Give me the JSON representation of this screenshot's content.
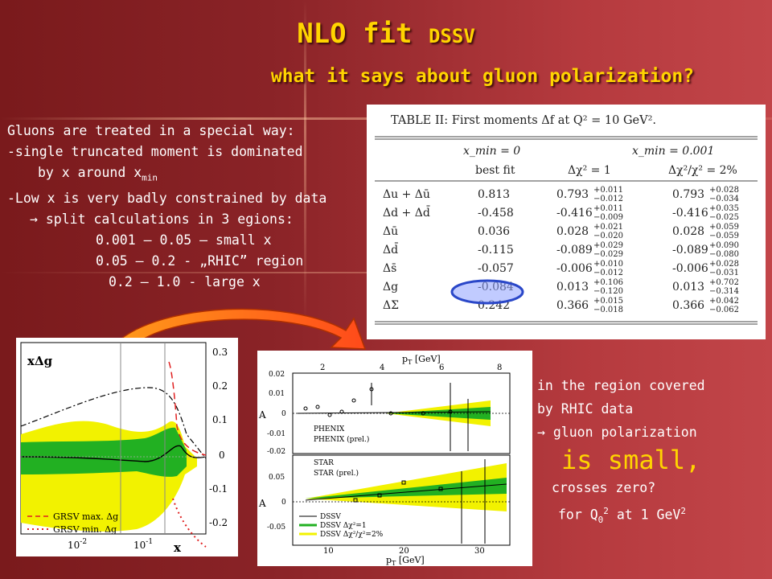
{
  "title": {
    "main": "NLO fit",
    "small": "DSSV",
    "subtitle": "what it says about gluon polarization?"
  },
  "left_text": [
    "Gluons are treated in a special way:",
    "-single truncated moment is dominated",
    "by x around x",
    "min",
    "-Low x is very badly constrained by data",
    "→ split calculations in 3 egions:",
    "0.001 – 0.05 – small x",
    "0.05 – 0.2  - „RHIC” region",
    "0.2 – 1.0   - large x"
  ],
  "table": {
    "caption": "TABLE II: First moments Δf at Q² = 10 GeV².",
    "group_headers": [
      "x_min = 0",
      "x_min = 0.001"
    ],
    "col_headers": [
      "best fit",
      "Δχ² = 1",
      "Δχ²/χ² = 2%"
    ],
    "rows": [
      {
        "label": "Δu + Δū",
        "best": "0.813",
        "c1": "0.793",
        "c1e": [
          "+0.011",
          "−0.012"
        ],
        "c2": "0.793",
        "c2e": [
          "+0.028",
          "−0.034"
        ]
      },
      {
        "label": "Δd + Δd̄",
        "best": "-0.458",
        "c1": "-0.416",
        "c1e": [
          "+0.011",
          "−0.009"
        ],
        "c2": "-0.416",
        "c2e": [
          "+0.035",
          "−0.025"
        ]
      },
      {
        "label": "Δū",
        "best": "0.036",
        "c1": "0.028",
        "c1e": [
          "+0.021",
          "−0.020"
        ],
        "c2": "0.028",
        "c2e": [
          "+0.059",
          "−0.059"
        ]
      },
      {
        "label": "Δd̄",
        "best": "-0.115",
        "c1": "-0.089",
        "c1e": [
          "+0.029",
          "−0.029"
        ],
        "c2": "-0.089",
        "c2e": [
          "+0.090",
          "−0.080"
        ]
      },
      {
        "label": "Δs̄",
        "best": "-0.057",
        "c1": "-0.006",
        "c1e": [
          "+0.010",
          "−0.012"
        ],
        "c2": "-0.006",
        "c2e": [
          "+0.028",
          "−0.031"
        ]
      },
      {
        "label": "Δg",
        "best": "-0.084",
        "c1": "0.013",
        "c1e": [
          "+0.106",
          "−0.120"
        ],
        "c2": "0.013",
        "c2e": [
          "+0.702",
          "−0.314"
        ]
      },
      {
        "label": "ΔΣ",
        "best": "0.242",
        "c1": "0.366",
        "c1e": [
          "+0.015",
          "−0.018"
        ],
        "c2": "0.366",
        "c2e": [
          "+0.042",
          "−0.062"
        ]
      }
    ]
  },
  "plot1": {
    "ylabel": "xΔg",
    "xlabel": "x",
    "yticks": [
      "0.3",
      "0.2",
      "0.1",
      "0",
      "-0.1",
      "-0.2"
    ],
    "xticks": [
      "10",
      "10"
    ],
    "xtick_exps": [
      "-2",
      "-1"
    ],
    "legend": [
      "GRSV max. Δg",
      "GRSV min. Δg"
    ]
  },
  "plot2": {
    "top_axis_label": "p",
    "top_axis_sub": "T",
    "top_axis_unit": " [GeV]",
    "top_ticks": [
      "2",
      "4",
      "6",
      "8"
    ],
    "bottom_axis_label": "p",
    "bottom_axis_sub": "T",
    "bottom_axis_unit": " [GeV]",
    "bottom_ticks": [
      "10",
      "20",
      "30"
    ],
    "upper_yticks": [
      "0.02",
      "0.01",
      "0",
      "-0.01",
      "-0.02"
    ],
    "lower_yticks": [
      "0.05",
      "0",
      "-0.05"
    ],
    "upper_ylabel": "A",
    "lower_ylabel": "A",
    "upper_legend": [
      "PHENIX",
      "PHENIX (prel.)"
    ],
    "lower_legend": [
      "STAR",
      "STAR (prel.)"
    ],
    "fit_legend": [
      "DSSV",
      "DSSV Δχ²=1",
      "DSSV Δχ²/χ²=2%"
    ]
  },
  "right_text": {
    "line1": "in the region covered",
    "line2": "by RHIC data",
    "line3": "→ gluon polarization",
    "big": "is small,",
    "line4": "crosses zero?",
    "line5a": "for Q",
    "line5b": "0",
    "line5c": "2",
    "line5d": " at 1 GeV",
    "line5e": "2"
  },
  "colors": {
    "title": "#ffd400",
    "band_yellow": "#f2f200",
    "band_green": "#22b022",
    "highlight": "#3a5bd9"
  }
}
